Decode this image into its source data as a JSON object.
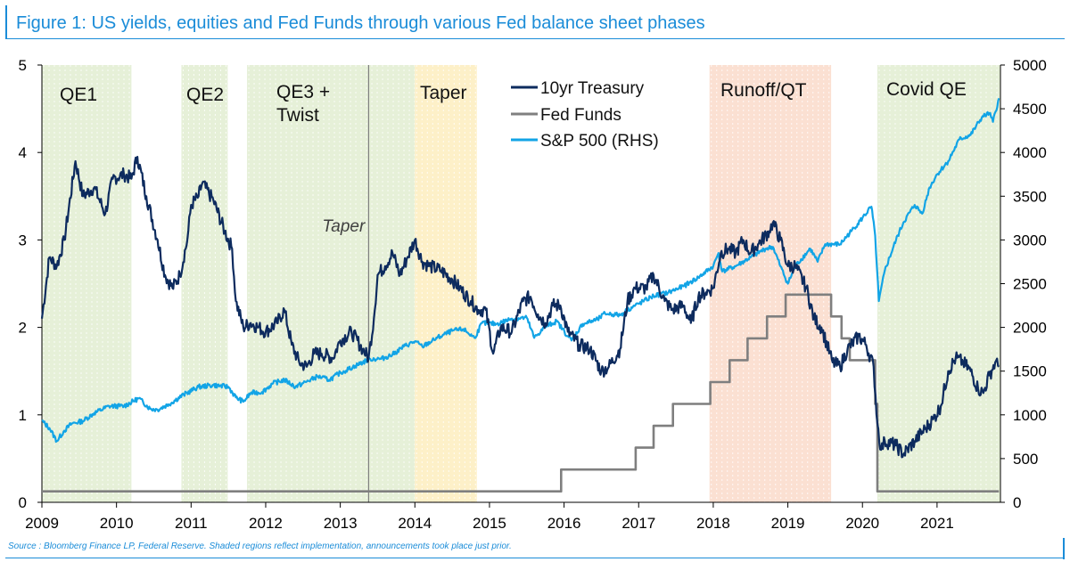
{
  "title": "Figure 1: US yields, equities and Fed Funds through various Fed balance sheet phases",
  "source": "Source : Bloomberg Finance LP, Federal Reserve. Shaded regions reflect implementation, announcements took place just prior.",
  "colors": {
    "treasury": "#0d2b5e",
    "fedfunds": "#7f7f7f",
    "spx": "#12a4e6",
    "qe_shade": "#e6f0d8",
    "taper_shade": "#fdf0c8",
    "qt_shade": "#fbe0d2",
    "accent": "#1a8cd8"
  },
  "chart_data": {
    "type": "line",
    "title": "Figure 1: US yields, equities and Fed Funds through various Fed balance sheet phases",
    "xlim": [
      2009,
      2021.85
    ],
    "ylim_left": [
      0,
      5
    ],
    "ylim_right": [
      0,
      5000
    ],
    "x_ticks": [
      "2009",
      "2010",
      "2011",
      "2012",
      "2013",
      "2014",
      "2015",
      "2016",
      "2017",
      "2018",
      "2019",
      "2020",
      "2021"
    ],
    "y_ticks_left": [
      "0",
      "1",
      "2",
      "3",
      "4",
      "5"
    ],
    "y_ticks_right": [
      "0",
      "500",
      "1000",
      "1500",
      "2000",
      "2500",
      "3000",
      "3500",
      "4000",
      "4500",
      "5000"
    ],
    "legend_position": "top-center",
    "regions": [
      {
        "label": "QE1",
        "start": 2009.0,
        "end": 2010.2,
        "kind": "qe"
      },
      {
        "label": "QE2",
        "start": 2010.87,
        "end": 2011.49,
        "kind": "qe"
      },
      {
        "label": "QE3 +\nTwist",
        "start": 2011.75,
        "end": 2014.0,
        "kind": "qe"
      },
      {
        "label": "Taper",
        "start": 2014.0,
        "end": 2014.83,
        "kind": "taper"
      },
      {
        "label": "Runoff/QT",
        "start": 2017.95,
        "end": 2019.58,
        "kind": "qt"
      },
      {
        "label": "Covid QE",
        "start": 2020.2,
        "end": 2021.85,
        "kind": "qe"
      }
    ],
    "annotations": [
      {
        "text": "Taper",
        "x": 2013.38
      }
    ],
    "series": [
      {
        "name": "10yr Treasury",
        "axis": "left",
        "points": [
          [
            2009.0,
            2.1
          ],
          [
            2009.1,
            2.8
          ],
          [
            2009.2,
            2.7
          ],
          [
            2009.3,
            3.0
          ],
          [
            2009.45,
            3.9
          ],
          [
            2009.55,
            3.5
          ],
          [
            2009.7,
            3.6
          ],
          [
            2009.85,
            3.3
          ],
          [
            2009.95,
            3.7
          ],
          [
            2010.1,
            3.75
          ],
          [
            2010.2,
            3.7
          ],
          [
            2010.28,
            3.95
          ],
          [
            2010.4,
            3.5
          ],
          [
            2010.55,
            3.0
          ],
          [
            2010.65,
            2.6
          ],
          [
            2010.75,
            2.45
          ],
          [
            2010.85,
            2.6
          ],
          [
            2010.95,
            3.0
          ],
          [
            2011.0,
            3.4
          ],
          [
            2011.1,
            3.5
          ],
          [
            2011.15,
            3.65
          ],
          [
            2011.3,
            3.45
          ],
          [
            2011.45,
            3.1
          ],
          [
            2011.55,
            2.9
          ],
          [
            2011.6,
            2.3
          ],
          [
            2011.7,
            2.0
          ],
          [
            2011.8,
            2.05
          ],
          [
            2011.9,
            2.0
          ],
          [
            2012.0,
            1.95
          ],
          [
            2012.15,
            2.05
          ],
          [
            2012.25,
            2.2
          ],
          [
            2012.35,
            1.8
          ],
          [
            2012.45,
            1.6
          ],
          [
            2012.55,
            1.55
          ],
          [
            2012.65,
            1.7
          ],
          [
            2012.75,
            1.7
          ],
          [
            2012.9,
            1.65
          ],
          [
            2013.0,
            1.85
          ],
          [
            2013.15,
            1.95
          ],
          [
            2013.3,
            1.75
          ],
          [
            2013.38,
            1.65
          ],
          [
            2013.45,
            2.1
          ],
          [
            2013.5,
            2.6
          ],
          [
            2013.6,
            2.7
          ],
          [
            2013.7,
            2.85
          ],
          [
            2013.8,
            2.6
          ],
          [
            2013.9,
            2.8
          ],
          [
            2014.0,
            3.0
          ],
          [
            2014.1,
            2.75
          ],
          [
            2014.2,
            2.7
          ],
          [
            2014.35,
            2.65
          ],
          [
            2014.5,
            2.55
          ],
          [
            2014.6,
            2.45
          ],
          [
            2014.75,
            2.3
          ],
          [
            2014.85,
            2.2
          ],
          [
            2014.95,
            2.2
          ],
          [
            2015.05,
            1.7
          ],
          [
            2015.15,
            2.0
          ],
          [
            2015.3,
            1.95
          ],
          [
            2015.45,
            2.3
          ],
          [
            2015.55,
            2.35
          ],
          [
            2015.65,
            2.15
          ],
          [
            2015.75,
            2.05
          ],
          [
            2015.85,
            2.25
          ],
          [
            2015.95,
            2.25
          ],
          [
            2016.05,
            1.95
          ],
          [
            2016.2,
            1.8
          ],
          [
            2016.35,
            1.75
          ],
          [
            2016.5,
            1.5
          ],
          [
            2016.6,
            1.55
          ],
          [
            2016.75,
            1.75
          ],
          [
            2016.85,
            2.3
          ],
          [
            2016.95,
            2.45
          ],
          [
            2017.1,
            2.45
          ],
          [
            2017.2,
            2.6
          ],
          [
            2017.35,
            2.3
          ],
          [
            2017.45,
            2.2
          ],
          [
            2017.6,
            2.25
          ],
          [
            2017.7,
            2.05
          ],
          [
            2017.8,
            2.35
          ],
          [
            2017.9,
            2.4
          ],
          [
            2018.0,
            2.45
          ],
          [
            2018.1,
            2.85
          ],
          [
            2018.2,
            2.9
          ],
          [
            2018.3,
            2.85
          ],
          [
            2018.4,
            3.0
          ],
          [
            2018.5,
            2.85
          ],
          [
            2018.6,
            2.95
          ],
          [
            2018.75,
            3.1
          ],
          [
            2018.8,
            3.2
          ],
          [
            2018.9,
            3.0
          ],
          [
            2019.0,
            2.7
          ],
          [
            2019.1,
            2.7
          ],
          [
            2019.25,
            2.45
          ],
          [
            2019.35,
            2.1
          ],
          [
            2019.45,
            2.0
          ],
          [
            2019.6,
            1.6
          ],
          [
            2019.7,
            1.55
          ],
          [
            2019.8,
            1.75
          ],
          [
            2019.95,
            1.9
          ],
          [
            2020.05,
            1.8
          ],
          [
            2020.15,
            1.55
          ],
          [
            2020.2,
            0.9
          ],
          [
            2020.25,
            0.6
          ],
          [
            2020.3,
            0.7
          ],
          [
            2020.45,
            0.65
          ],
          [
            2020.55,
            0.55
          ],
          [
            2020.7,
            0.7
          ],
          [
            2020.85,
            0.85
          ],
          [
            2020.95,
            0.95
          ],
          [
            2021.05,
            1.1
          ],
          [
            2021.15,
            1.5
          ],
          [
            2021.25,
            1.65
          ],
          [
            2021.35,
            1.6
          ],
          [
            2021.45,
            1.5
          ],
          [
            2021.55,
            1.3
          ],
          [
            2021.62,
            1.25
          ],
          [
            2021.7,
            1.45
          ],
          [
            2021.78,
            1.6
          ],
          [
            2021.83,
            1.55
          ]
        ]
      },
      {
        "name": "Fed Funds",
        "axis": "left",
        "points": [
          [
            2009.0,
            0.125
          ],
          [
            2015.96,
            0.125
          ],
          [
            2015.96,
            0.375
          ],
          [
            2016.96,
            0.375
          ],
          [
            2016.96,
            0.625
          ],
          [
            2017.2,
            0.625
          ],
          [
            2017.2,
            0.875
          ],
          [
            2017.46,
            0.875
          ],
          [
            2017.46,
            1.125
          ],
          [
            2017.96,
            1.125
          ],
          [
            2017.96,
            1.375
          ],
          [
            2018.22,
            1.375
          ],
          [
            2018.22,
            1.625
          ],
          [
            2018.46,
            1.625
          ],
          [
            2018.46,
            1.875
          ],
          [
            2018.72,
            1.875
          ],
          [
            2018.72,
            2.125
          ],
          [
            2018.97,
            2.125
          ],
          [
            2018.97,
            2.375
          ],
          [
            2019.58,
            2.375
          ],
          [
            2019.58,
            2.125
          ],
          [
            2019.72,
            2.125
          ],
          [
            2019.72,
            1.875
          ],
          [
            2019.83,
            1.875
          ],
          [
            2019.83,
            1.625
          ],
          [
            2020.17,
            1.625
          ],
          [
            2020.17,
            1.125
          ],
          [
            2020.2,
            1.125
          ],
          [
            2020.2,
            0.125
          ],
          [
            2021.83,
            0.125
          ]
        ]
      },
      {
        "name": "S&P 500 (RHS)",
        "axis": "right",
        "points": [
          [
            2009.0,
            930
          ],
          [
            2009.1,
            850
          ],
          [
            2009.2,
            700
          ],
          [
            2009.3,
            820
          ],
          [
            2009.4,
            900
          ],
          [
            2009.55,
            930
          ],
          [
            2009.7,
            1020
          ],
          [
            2009.9,
            1100
          ],
          [
            2010.1,
            1100
          ],
          [
            2010.3,
            1190
          ],
          [
            2010.45,
            1070
          ],
          [
            2010.55,
            1060
          ],
          [
            2010.7,
            1120
          ],
          [
            2010.9,
            1230
          ],
          [
            2011.1,
            1320
          ],
          [
            2011.3,
            1340
          ],
          [
            2011.5,
            1320
          ],
          [
            2011.6,
            1200
          ],
          [
            2011.7,
            1150
          ],
          [
            2011.8,
            1250
          ],
          [
            2011.95,
            1260
          ],
          [
            2012.1,
            1360
          ],
          [
            2012.25,
            1400
          ],
          [
            2012.4,
            1320
          ],
          [
            2012.55,
            1380
          ],
          [
            2012.7,
            1440
          ],
          [
            2012.85,
            1400
          ],
          [
            2013.0,
            1480
          ],
          [
            2013.2,
            1560
          ],
          [
            2013.4,
            1640
          ],
          [
            2013.55,
            1640
          ],
          [
            2013.7,
            1690
          ],
          [
            2013.85,
            1780
          ],
          [
            2014.0,
            1840
          ],
          [
            2014.1,
            1780
          ],
          [
            2014.3,
            1880
          ],
          [
            2014.5,
            1960
          ],
          [
            2014.65,
            1980
          ],
          [
            2014.8,
            1880
          ],
          [
            2014.9,
            2050
          ],
          [
            2015.1,
            2040
          ],
          [
            2015.3,
            2100
          ],
          [
            2015.5,
            2110
          ],
          [
            2015.6,
            1880
          ],
          [
            2015.75,
            2010
          ],
          [
            2015.9,
            2070
          ],
          [
            2016.05,
            1900
          ],
          [
            2016.1,
            1850
          ],
          [
            2016.25,
            2040
          ],
          [
            2016.45,
            2090
          ],
          [
            2016.55,
            2160
          ],
          [
            2016.75,
            2140
          ],
          [
            2016.85,
            2200
          ],
          [
            2017.0,
            2270
          ],
          [
            2017.2,
            2360
          ],
          [
            2017.4,
            2400
          ],
          [
            2017.6,
            2470
          ],
          [
            2017.8,
            2570
          ],
          [
            2018.0,
            2700
          ],
          [
            2018.07,
            2850
          ],
          [
            2018.12,
            2640
          ],
          [
            2018.3,
            2700
          ],
          [
            2018.5,
            2800
          ],
          [
            2018.7,
            2900
          ],
          [
            2018.8,
            2920
          ],
          [
            2018.9,
            2700
          ],
          [
            2019.0,
            2500
          ],
          [
            2019.1,
            2700
          ],
          [
            2019.3,
            2900
          ],
          [
            2019.4,
            2750
          ],
          [
            2019.5,
            2950
          ],
          [
            2019.7,
            2950
          ],
          [
            2019.85,
            3100
          ],
          [
            2020.0,
            3250
          ],
          [
            2020.12,
            3380
          ],
          [
            2020.17,
            3050
          ],
          [
            2020.22,
            2300
          ],
          [
            2020.3,
            2650
          ],
          [
            2020.45,
            3000
          ],
          [
            2020.55,
            3200
          ],
          [
            2020.7,
            3400
          ],
          [
            2020.8,
            3300
          ],
          [
            2020.9,
            3600
          ],
          [
            2021.0,
            3750
          ],
          [
            2021.15,
            3900
          ],
          [
            2021.3,
            4150
          ],
          [
            2021.45,
            4200
          ],
          [
            2021.6,
            4400
          ],
          [
            2021.7,
            4450
          ],
          [
            2021.75,
            4350
          ],
          [
            2021.83,
            4620
          ]
        ]
      }
    ]
  }
}
